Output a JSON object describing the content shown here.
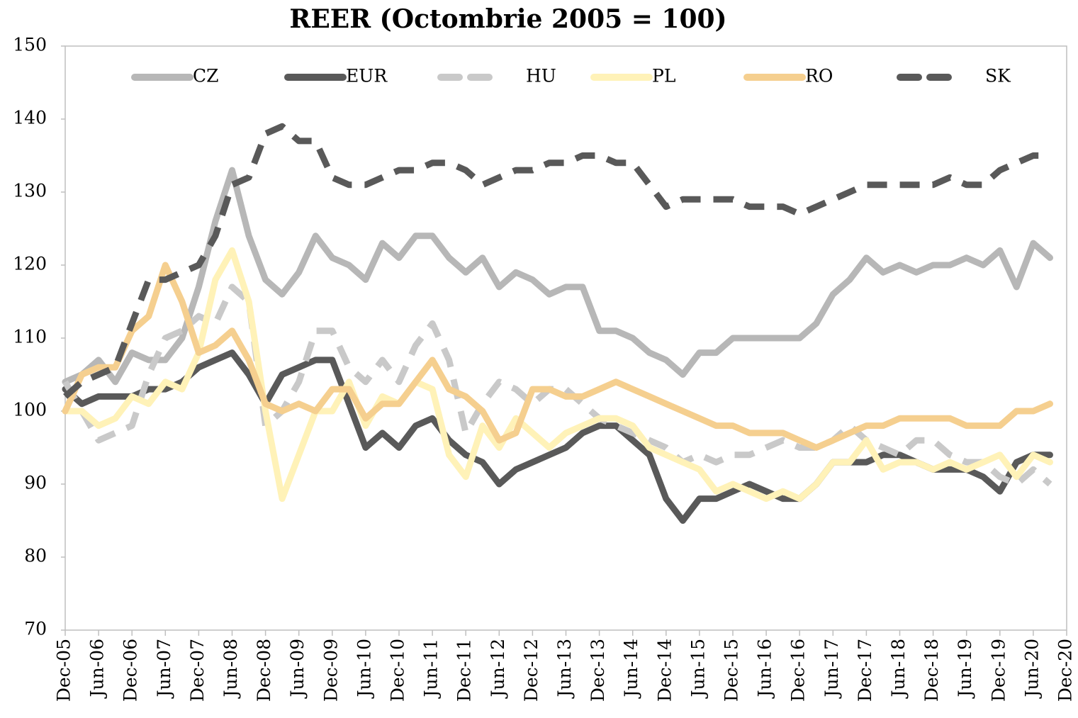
{
  "chart_data": {
    "type": "line",
    "title": "REER (Octombrie 2005 = 100)",
    "categories": [
      "Dec-05",
      null,
      "Jun-06",
      null,
      "Dec-06",
      null,
      "Jun-07",
      null,
      "Dec-07",
      null,
      "Jun-08",
      null,
      "Dec-08",
      null,
      "Jun-09",
      null,
      "Dec-09",
      null,
      "Jun-10",
      null,
      "Dec-10",
      null,
      "Jun-11",
      null,
      "Dec-11",
      null,
      "Jun-12",
      null,
      "Dec-12",
      null,
      "Jun-13",
      null,
      "Dec-13",
      null,
      "Jun-14",
      null,
      "Dec-14",
      null,
      "Jun-15",
      null,
      "Dec-15",
      null,
      "Jun-16",
      null,
      "Dec-16",
      null,
      "Jun-17",
      null,
      "Dec-17",
      null,
      "Jun-18",
      null,
      "Dec-18",
      null,
      "Jun-19",
      null,
      "Dec-19",
      null,
      "Jun-20",
      null,
      "Dec-20"
    ],
    "series": [
      {
        "name": "CZ",
        "color": "#b7b7b7",
        "dashed": false,
        "values": [
          104,
          105,
          107,
          104,
          108,
          107,
          107,
          110,
          117,
          126,
          133,
          124,
          118,
          116,
          119,
          124,
          121,
          120,
          118,
          123,
          121,
          124,
          124,
          121,
          119,
          121,
          117,
          119,
          118,
          116,
          117,
          117,
          111,
          111,
          110,
          108,
          107,
          105,
          108,
          108,
          110,
          110,
          110,
          110,
          110,
          112,
          116,
          118,
          121,
          119,
          120,
          119,
          120,
          120,
          121,
          120,
          122,
          117,
          123,
          121,
          null
        ]
      },
      {
        "name": "EUR",
        "color": "#595959",
        "dashed": false,
        "values": [
          103,
          101,
          102,
          102,
          102,
          103,
          103,
          104,
          106,
          107,
          108,
          105,
          101,
          105,
          106,
          107,
          107,
          101,
          95,
          97,
          95,
          98,
          99,
          96,
          94,
          93,
          90,
          92,
          93,
          94,
          95,
          97,
          98,
          98,
          96,
          94,
          88,
          85,
          88,
          88,
          89,
          90,
          89,
          88,
          88,
          90,
          93,
          93,
          93,
          94,
          94,
          93,
          92,
          92,
          92,
          91,
          89,
          93,
          94,
          94,
          null
        ]
      },
      {
        "name": "HU",
        "color": "#c9c9c9",
        "dashed": true,
        "values": [
          104,
          100,
          96,
          97,
          98,
          105,
          110,
          111,
          113,
          112,
          117,
          115,
          98,
          100,
          104,
          111,
          111,
          106,
          104,
          107,
          104,
          109,
          112,
          107,
          97,
          101,
          104,
          103,
          101,
          103,
          103,
          101,
          99,
          98,
          97,
          96,
          95,
          93,
          94,
          93,
          94,
          94,
          95,
          96,
          95,
          95,
          96,
          98,
          96,
          95,
          94,
          96,
          96,
          94,
          93,
          93,
          91,
          90,
          92,
          90,
          null
        ]
      },
      {
        "name": "PL",
        "color": "#fff2b8",
        "dashed": false,
        "values": [
          100,
          100,
          98,
          99,
          102,
          101,
          104,
          103,
          108,
          118,
          122,
          115,
          100,
          88,
          94,
          100,
          100,
          104,
          98,
          102,
          101,
          104,
          103,
          94,
          91,
          98,
          95,
          99,
          97,
          95,
          97,
          98,
          99,
          99,
          98,
          95,
          94,
          93,
          92,
          89,
          90,
          89,
          88,
          89,
          88,
          90,
          93,
          93,
          96,
          92,
          93,
          93,
          92,
          93,
          92,
          93,
          94,
          91,
          94,
          93,
          null
        ]
      },
      {
        "name": "RO",
        "color": "#f5cf8f",
        "dashed": false,
        "values": [
          100,
          105,
          106,
          106,
          111,
          113,
          120,
          115,
          108,
          109,
          111,
          107,
          101,
          100,
          101,
          100,
          103,
          103,
          99,
          101,
          101,
          104,
          107,
          103,
          102,
          100,
          96,
          97,
          103,
          103,
          102,
          102,
          103,
          104,
          103,
          102,
          101,
          100,
          99,
          98,
          98,
          97,
          97,
          97,
          96,
          95,
          96,
          97,
          98,
          98,
          99,
          99,
          99,
          99,
          98,
          98,
          98,
          100,
          100,
          101,
          null
        ]
      },
      {
        "name": "SK",
        "color": "#595959",
        "dashed": true,
        "values": [
          102,
          104,
          105,
          106,
          112,
          118,
          118,
          119,
          120,
          124,
          131,
          132,
          138,
          139,
          137,
          137,
          132,
          131,
          131,
          132,
          133,
          133,
          134,
          134,
          133,
          131,
          132,
          133,
          133,
          134,
          134,
          135,
          135,
          134,
          134,
          131,
          128,
          129,
          129,
          129,
          129,
          128,
          128,
          128,
          127,
          128,
          129,
          130,
          131,
          131,
          131,
          131,
          131,
          132,
          131,
          131,
          133,
          134,
          135,
          135,
          null
        ]
      }
    ],
    "ylim": [
      70,
      150
    ],
    "yticks": [
      70,
      80,
      90,
      100,
      110,
      120,
      130,
      140,
      150
    ],
    "grid": false,
    "legend": "top"
  }
}
